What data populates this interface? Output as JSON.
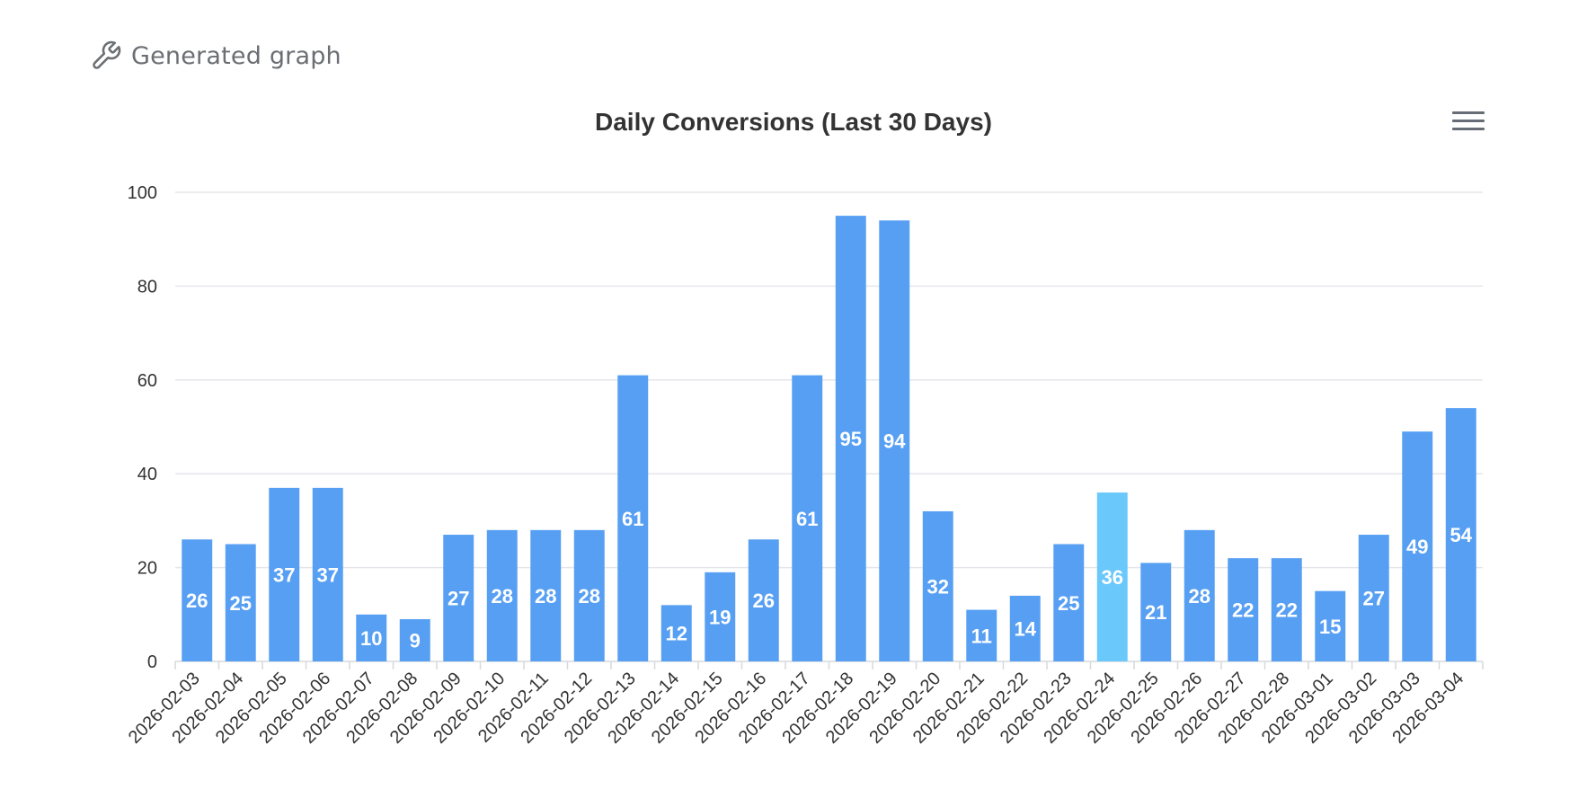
{
  "header": {
    "title": "Generated graph",
    "icon": "wrench-icon"
  },
  "toolbar": {
    "menu_icon": "hamburger-menu-icon"
  },
  "colors": {
    "bar": "#579ff3",
    "bar_highlight": "#6ac8fb",
    "grid": "#e3e6ea",
    "axis_text": "#333333",
    "data_label": "#ffffff"
  },
  "chart_data": {
    "type": "bar",
    "title": "Daily Conversions (Last 30 Days)",
    "xlabel": "",
    "ylabel": "",
    "ylim": [
      0,
      100
    ],
    "yticks": [
      0,
      20,
      40,
      60,
      80,
      100
    ],
    "grid": true,
    "highlighted_category": "2026-02-24",
    "categories": [
      "2026-02-03",
      "2026-02-04",
      "2026-02-05",
      "2026-02-06",
      "2026-02-07",
      "2026-02-08",
      "2026-02-09",
      "2026-02-10",
      "2026-02-11",
      "2026-02-12",
      "2026-02-13",
      "2026-02-14",
      "2026-02-15",
      "2026-02-16",
      "2026-02-17",
      "2026-02-18",
      "2026-02-19",
      "2026-02-20",
      "2026-02-21",
      "2026-02-22",
      "2026-02-23",
      "2026-02-24",
      "2026-02-25",
      "2026-02-26",
      "2026-02-27",
      "2026-02-28",
      "2026-03-01",
      "2026-03-02",
      "2026-03-03",
      "2026-03-04"
    ],
    "values": [
      26,
      25,
      37,
      37,
      10,
      9,
      27,
      28,
      28,
      28,
      61,
      12,
      19,
      26,
      61,
      95,
      94,
      32,
      11,
      14,
      25,
      36,
      21,
      28,
      22,
      22,
      15,
      27,
      49,
      54
    ]
  }
}
